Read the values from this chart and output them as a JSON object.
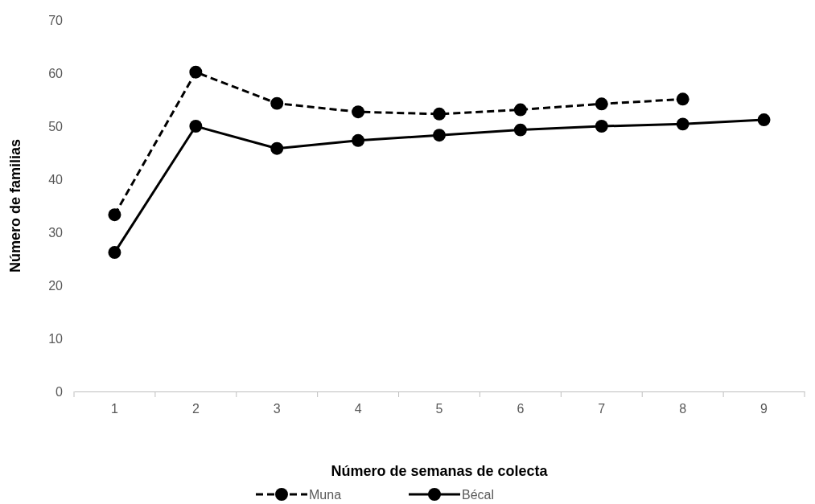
{
  "chart_data": {
    "type": "line",
    "xlabel": "Número de semanas de colecta",
    "ylabel": "Número de familias",
    "categories": [
      "1",
      "2",
      "3",
      "4",
      "5",
      "6",
      "7",
      "8",
      "9"
    ],
    "ylim": [
      0,
      70
    ],
    "yticks": [
      0,
      10,
      20,
      30,
      40,
      50,
      60,
      70
    ],
    "grid": false,
    "legend": "bottom",
    "marker": "circle",
    "series": [
      {
        "name": "Muna",
        "color": "#000000",
        "line_style": "dashed",
        "values": [
          33.3,
          60.2,
          54.3,
          52.7,
          52.3,
          53.1,
          54.2,
          55.1,
          null
        ]
      },
      {
        "name": "Bécal",
        "color": "#000000",
        "line_style": "solid",
        "values": [
          26.2,
          50.0,
          45.8,
          47.3,
          48.3,
          49.3,
          50.0,
          50.4,
          51.2
        ]
      }
    ]
  }
}
